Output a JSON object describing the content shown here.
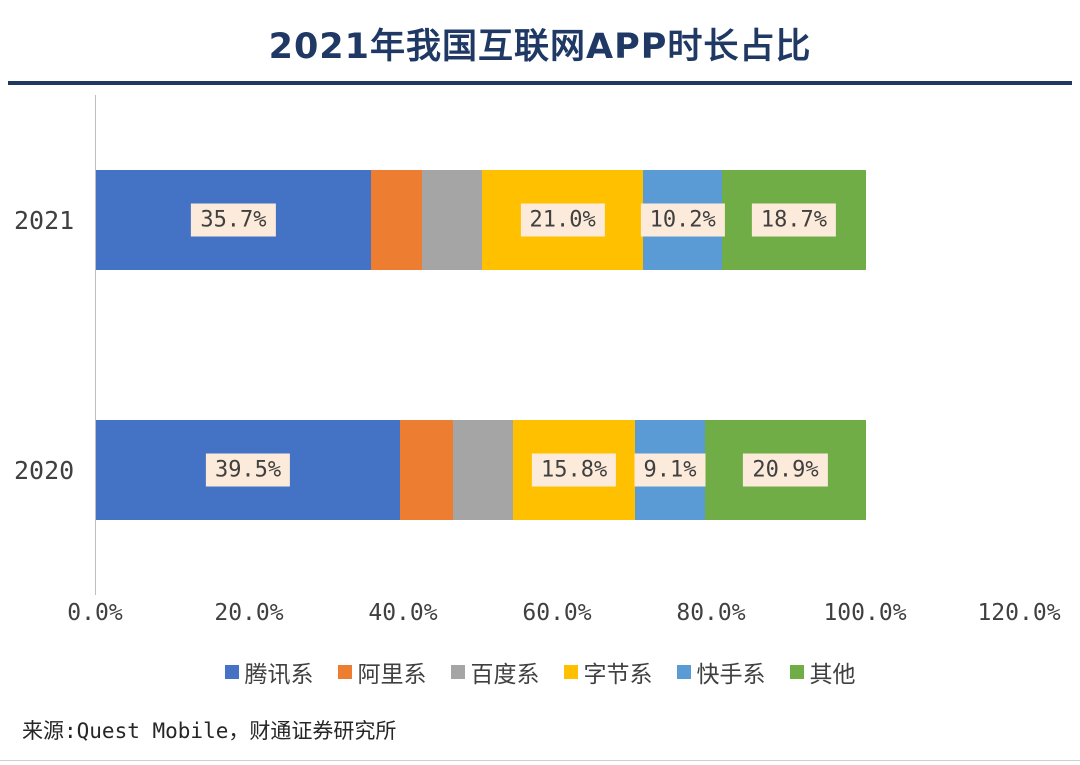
{
  "title": "2021年我国互联网APP时长占比",
  "source": "来源:Quest Mobile，财通证券研究所",
  "colors": {
    "title": "#1F3864",
    "rule": "#1F3864",
    "axis_line": "#BFBFBF",
    "label_bg": "#FCEBDB",
    "text": "#404040"
  },
  "chart_data": {
    "type": "bar",
    "orientation": "horizontal",
    "stacked": true,
    "title": "2021年我国互联网APP时长占比",
    "categories": [
      "2021",
      "2020"
    ],
    "series": [
      {
        "name": "腾讯系",
        "color": "#4472C4",
        "values": [
          35.7,
          39.5
        ],
        "labels": [
          "35.7%",
          "39.5%"
        ]
      },
      {
        "name": "阿里系",
        "color": "#ED7D31",
        "values": [
          6.6,
          6.9
        ],
        "labels": [
          null,
          null
        ]
      },
      {
        "name": "百度系",
        "color": "#A5A5A5",
        "values": [
          7.8,
          7.8
        ],
        "labels": [
          null,
          null
        ]
      },
      {
        "name": "字节系",
        "color": "#FFC000",
        "values": [
          21.0,
          15.8
        ],
        "labels": [
          "21.0%",
          "15.8%"
        ]
      },
      {
        "name": "快手系",
        "color": "#5B9BD5",
        "values": [
          10.2,
          9.1
        ],
        "labels": [
          "10.2%",
          "9.1%"
        ]
      },
      {
        "name": "其他",
        "color": "#70AD47",
        "values": [
          18.7,
          20.9
        ],
        "labels": [
          "18.7%",
          "20.9%"
        ]
      }
    ],
    "x_ticks": [
      "0.0%",
      "20.0%",
      "40.0%",
      "60.0%",
      "80.0%",
      "100.0%",
      "120.0%"
    ],
    "xlim": [
      0,
      120
    ],
    "grid": false,
    "legend_position": "bottom"
  }
}
